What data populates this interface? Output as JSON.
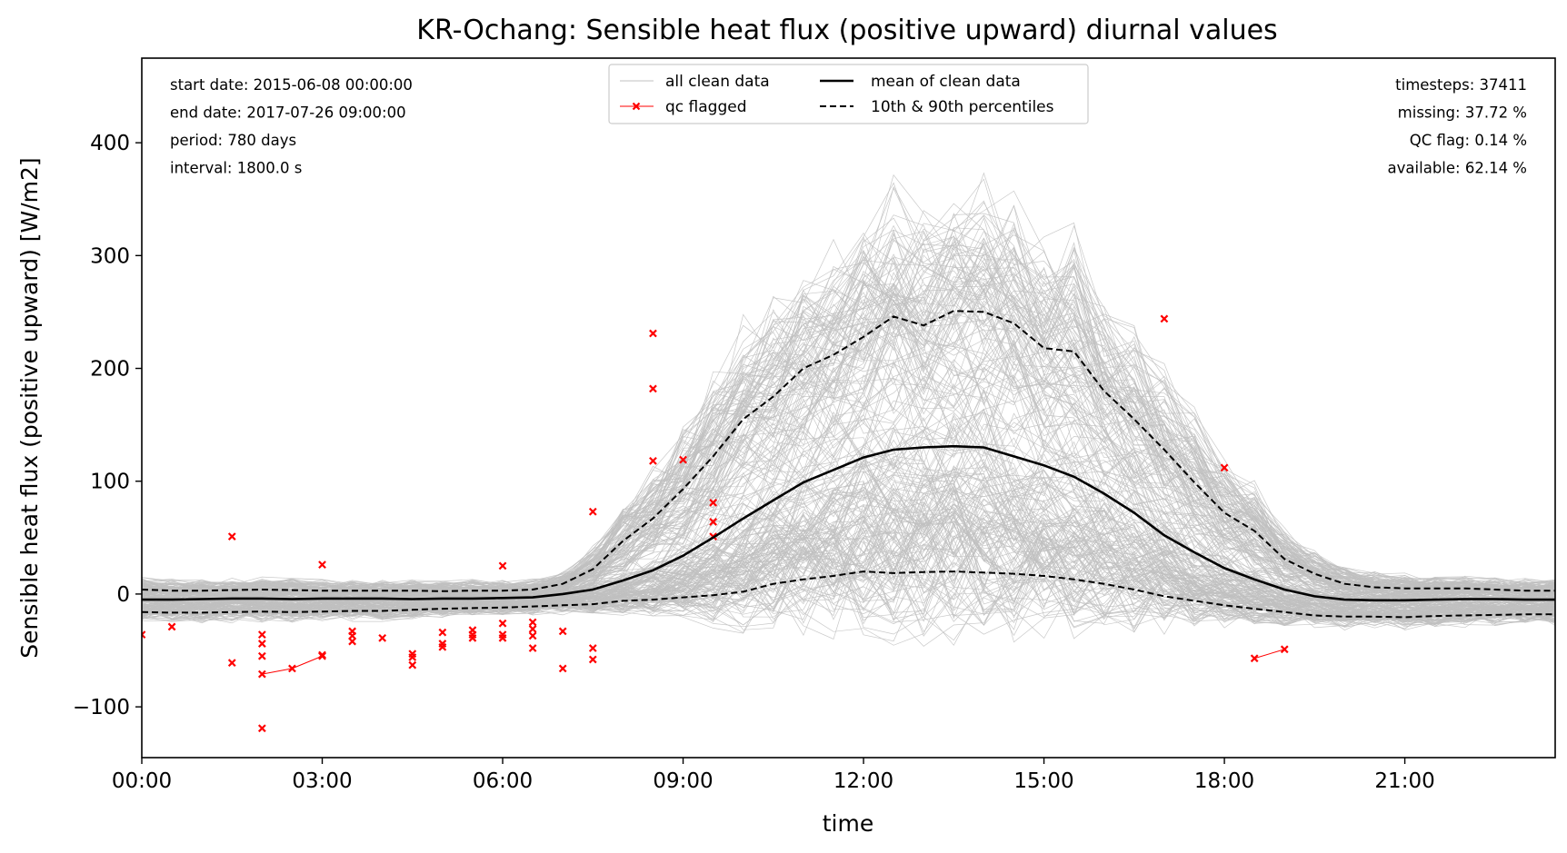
{
  "chart_data": {
    "type": "line",
    "title": "KR-Ochang: Sensible heat flux (positive upward) diurnal values",
    "xlabel": "time",
    "ylabel": "Sensible heat flux (positive upward) [W/m2]",
    "xlim": [
      0,
      23.5
    ],
    "ylim": [
      -145,
      475
    ],
    "x_ticks": [
      {
        "value": 0,
        "label": "00:00"
      },
      {
        "value": 3,
        "label": "03:00"
      },
      {
        "value": 6,
        "label": "06:00"
      },
      {
        "value": 9,
        "label": "09:00"
      },
      {
        "value": 12,
        "label": "12:00"
      },
      {
        "value": 15,
        "label": "15:00"
      },
      {
        "value": 18,
        "label": "18:00"
      },
      {
        "value": 21,
        "label": "21:00"
      }
    ],
    "y_ticks": [
      {
        "value": -100,
        "label": "−100"
      },
      {
        "value": 0,
        "label": "0"
      },
      {
        "value": 100,
        "label": "100"
      },
      {
        "value": 200,
        "label": "200"
      },
      {
        "value": 300,
        "label": "300"
      },
      {
        "value": 400,
        "label": "400"
      }
    ],
    "grid": false,
    "legend": {
      "placement": "top-center",
      "entries": [
        "all clean data",
        "qc flagged",
        "mean of clean data",
        "10th & 90th percentiles"
      ]
    },
    "info_left": [
      "start date: 2015-06-08 00:00:00",
      "end date: 2017-07-26 09:00:00",
      "period: 780 days",
      "interval: 1800.0 s"
    ],
    "info_right": [
      "timesteps: 37411",
      "missing: 37.72 %",
      "QC flag: 0.14 %",
      "available: 62.14 %"
    ],
    "x": [
      0,
      0.5,
      1,
      1.5,
      2,
      2.5,
      3,
      3.5,
      4,
      4.5,
      5,
      5.5,
      6,
      6.5,
      7,
      7.5,
      8,
      8.5,
      9,
      9.5,
      10,
      10.5,
      11,
      11.5,
      12,
      12.5,
      13,
      13.5,
      14,
      14.5,
      15,
      15.5,
      16,
      16.5,
      17,
      17.5,
      18,
      18.5,
      19,
      19.5,
      20,
      20.5,
      21,
      21.5,
      22,
      22.5,
      23,
      23.5
    ],
    "series": [
      {
        "name": "mean of clean data",
        "style": "solid",
        "color": "#000000",
        "values": [
          -5,
          -5,
          -4.5,
          -4,
          -4,
          -4.5,
          -4,
          -4,
          -4,
          -4.5,
          -4,
          -4,
          -3.5,
          -3,
          0,
          4,
          12,
          21,
          34,
          50,
          67,
          83,
          99,
          110,
          121,
          128,
          130,
          131,
          130,
          122,
          114,
          104,
          89,
          72,
          52,
          37,
          23,
          13,
          4,
          -2,
          -5,
          -5.5,
          -5.5,
          -5,
          -4.5,
          -4.5,
          -5,
          -5
        ]
      },
      {
        "name": "10th & 90th percentiles",
        "style": "dashed",
        "color": "#000000",
        "values": [
          4,
          3,
          3,
          3.5,
          4,
          3.5,
          3,
          3,
          3,
          3,
          2.5,
          3,
          3,
          4,
          9,
          22,
          47,
          67,
          93,
          122,
          155,
          175,
          200,
          212,
          228,
          246,
          238,
          251,
          250,
          240,
          218,
          215,
          180,
          155,
          128,
          99,
          72,
          56,
          31,
          18,
          9,
          6,
          5,
          5,
          5,
          4,
          3,
          3
        ]
      },
      {
        "name": "10th percentile",
        "style": "dashed",
        "color": "#000000",
        "values": [
          -16,
          -16.5,
          -16.5,
          -16,
          -15.5,
          -16,
          -15.5,
          -15,
          -15,
          -14,
          -13,
          -12.5,
          -12,
          -11,
          -10,
          -9,
          -6,
          -5,
          -3,
          -1,
          2,
          9,
          13,
          16,
          20,
          18.5,
          19.5,
          20,
          19,
          18,
          16,
          13,
          9,
          4,
          -2,
          -6,
          -10,
          -13,
          -16,
          -19,
          -20,
          -20,
          -20.5,
          -19.5,
          -19,
          -18.5,
          -18,
          -18
        ]
      }
    ],
    "qc_flagged": [
      [
        0,
        -36
      ],
      [
        0.5,
        -29
      ],
      [
        1.5,
        51
      ],
      [
        1.5,
        -61
      ],
      [
        2,
        -36
      ],
      [
        2,
        -44
      ],
      [
        2,
        -55
      ],
      [
        2,
        -71
      ],
      [
        2,
        -119
      ],
      [
        2.5,
        -66
      ],
      [
        3,
        26
      ],
      [
        3,
        -54
      ],
      [
        3,
        -55
      ],
      [
        3.5,
        -33
      ],
      [
        3.5,
        -37
      ],
      [
        3.5,
        -42
      ],
      [
        4,
        -39
      ],
      [
        4.5,
        -53
      ],
      [
        4.5,
        -56
      ],
      [
        4.5,
        -63
      ],
      [
        5,
        -34
      ],
      [
        5,
        -44
      ],
      [
        5,
        -47
      ],
      [
        5.5,
        -32
      ],
      [
        5.5,
        -36
      ],
      [
        5.5,
        -39
      ],
      [
        6,
        25
      ],
      [
        6,
        -26
      ],
      [
        6,
        -36
      ],
      [
        6,
        -39
      ],
      [
        6.5,
        -25
      ],
      [
        6.5,
        -31
      ],
      [
        6.5,
        -37
      ],
      [
        6.5,
        -48
      ],
      [
        7,
        -33
      ],
      [
        7,
        -66
      ],
      [
        7.5,
        73
      ],
      [
        7.5,
        -48
      ],
      [
        7.5,
        -58
      ],
      [
        8.5,
        231
      ],
      [
        8.5,
        182
      ],
      [
        8.5,
        118
      ],
      [
        9,
        119
      ],
      [
        9.5,
        81
      ],
      [
        9.5,
        64
      ],
      [
        9.5,
        51
      ],
      [
        17,
        244
      ],
      [
        18,
        112
      ],
      [
        18.5,
        -57
      ],
      [
        19,
        -49
      ]
    ],
    "qc_links": [
      [
        [
          2,
          -71
        ],
        [
          2.5,
          -66
        ]
      ],
      [
        [
          2.5,
          -66
        ],
        [
          3,
          -55
        ]
      ],
      [
        [
          18.5,
          -57
        ],
        [
          19,
          -49
        ]
      ]
    ],
    "colors": {
      "clean_data": "#c0c0c0",
      "qc_flagged": "#ff0000",
      "mean": "#000000",
      "percentiles": "#000000"
    }
  }
}
